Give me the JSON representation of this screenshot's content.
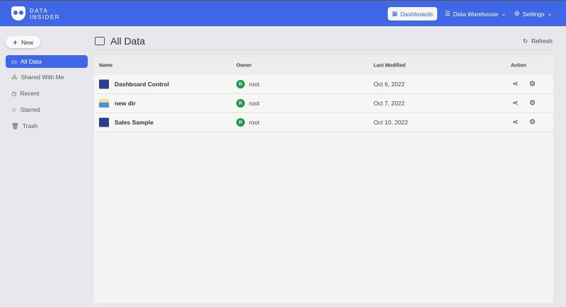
{
  "header": {
    "brand_line1": "DATA",
    "brand_line2": "INSIDER",
    "nav": [
      {
        "label": "Dashboards",
        "icon": "dashboard-icon"
      },
      {
        "label": "Data Warehouse",
        "icon": "database-icon"
      },
      {
        "label": "Settings",
        "icon": "gear-icon"
      }
    ]
  },
  "sidebar": {
    "new_label": "New",
    "items": [
      {
        "label": "All Data",
        "icon": "folder-icon"
      },
      {
        "label": "Shared With Me",
        "icon": "share-icon"
      },
      {
        "label": "Recent",
        "icon": "clock-icon"
      },
      {
        "label": "Starred",
        "icon": "star-icon"
      },
      {
        "label": "Trash",
        "icon": "trash-icon"
      }
    ]
  },
  "main": {
    "title": "All Data",
    "refresh_label": "Refresh",
    "columns": [
      "Name",
      "Owner",
      "Last Modified",
      "Action"
    ],
    "rows": [
      {
        "name": "Dashboard Control",
        "type": "dashboard",
        "owner_initial": "R",
        "owner": "root",
        "modified": "Oct 6, 2022"
      },
      {
        "name": "new dir",
        "type": "folder",
        "owner_initial": "R",
        "owner": "root",
        "modified": "Oct 7, 2022"
      },
      {
        "name": "Sales Sample",
        "type": "dashboard",
        "owner_initial": "R",
        "owner": "root",
        "modified": "Oct 10, 2022"
      }
    ]
  },
  "colors": {
    "accent": "#4067e8",
    "owner_avatar": "#1e9a4a"
  }
}
